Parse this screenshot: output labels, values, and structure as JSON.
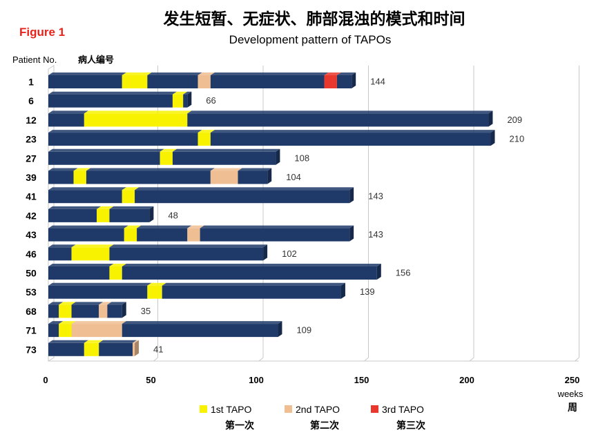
{
  "chart_data": {
    "type": "bar",
    "orientation": "horizontal",
    "stacked": true,
    "title": "发生短暂、无症状、肺部混浊的模式和时间",
    "subtitle": "Development pattern of TAPOs",
    "figure_label": "Figure 1",
    "row_header": "Patient  No.",
    "row_header_cn": "病人编号",
    "xlabel": "weeks",
    "xlabel_cn": "周",
    "xlim": [
      0,
      250
    ],
    "x_ticks": [
      0,
      50,
      100,
      150,
      200,
      250
    ],
    "grid": true,
    "categories": [
      "1",
      "6",
      "12",
      "23",
      "27",
      "39",
      "41",
      "42",
      "43",
      "46",
      "50",
      "53",
      "68",
      "71",
      "73"
    ],
    "totals": [
      144,
      66,
      209,
      210,
      108,
      104,
      143,
      48,
      143,
      102,
      156,
      139,
      35,
      109,
      41
    ],
    "segment_colors": {
      "base": "#1f3a69",
      "tapo1": "#f8f200",
      "tapo2": "#efbe92",
      "tapo3": "#e8372c"
    },
    "events": [
      [
        {
          "type": "tapo1",
          "start": 35,
          "end": 47
        },
        {
          "type": "tapo2",
          "start": 71,
          "end": 77
        },
        {
          "type": "tapo3",
          "start": 131,
          "end": 137
        }
      ],
      [
        {
          "type": "tapo1",
          "start": 59,
          "end": 64
        }
      ],
      [
        {
          "type": "tapo1",
          "start": 17,
          "end": 66
        }
      ],
      [
        {
          "type": "tapo1",
          "start": 71,
          "end": 77
        }
      ],
      [
        {
          "type": "tapo1",
          "start": 53,
          "end": 59
        }
      ],
      [
        {
          "type": "tapo1",
          "start": 12,
          "end": 18
        },
        {
          "type": "tapo2",
          "start": 77,
          "end": 90
        }
      ],
      [
        {
          "type": "tapo1",
          "start": 35,
          "end": 41
        }
      ],
      [
        {
          "type": "tapo1",
          "start": 23,
          "end": 29
        }
      ],
      [
        {
          "type": "tapo1",
          "start": 36,
          "end": 42
        },
        {
          "type": "tapo2",
          "start": 66,
          "end": 72
        }
      ],
      [
        {
          "type": "tapo1",
          "start": 11,
          "end": 29
        }
      ],
      [
        {
          "type": "tapo1",
          "start": 29,
          "end": 35
        }
      ],
      [
        {
          "type": "tapo1",
          "start": 47,
          "end": 54
        }
      ],
      [
        {
          "type": "tapo1",
          "start": 5,
          "end": 11
        },
        {
          "type": "tapo2",
          "start": 24,
          "end": 28
        }
      ],
      [
        {
          "type": "tapo1",
          "start": 5,
          "end": 11
        },
        {
          "type": "tapo2",
          "start": 11,
          "end": 35
        }
      ],
      [
        {
          "type": "tapo1",
          "start": 17,
          "end": 24
        },
        {
          "type": "tapo2",
          "start": 40,
          "end": 41
        }
      ]
    ],
    "legend": [
      {
        "key": "tapo1",
        "label": "1st TAPO",
        "label_cn": "第一次",
        "color": "#f8f200"
      },
      {
        "key": "tapo2",
        "label": "2nd TAPO",
        "label_cn": "第二次",
        "color": "#efbe92"
      },
      {
        "key": "tapo3",
        "label": "3rd TAPO",
        "label_cn": "第三次",
        "color": "#e8372c"
      }
    ],
    "legend_position": "bottom-center"
  }
}
